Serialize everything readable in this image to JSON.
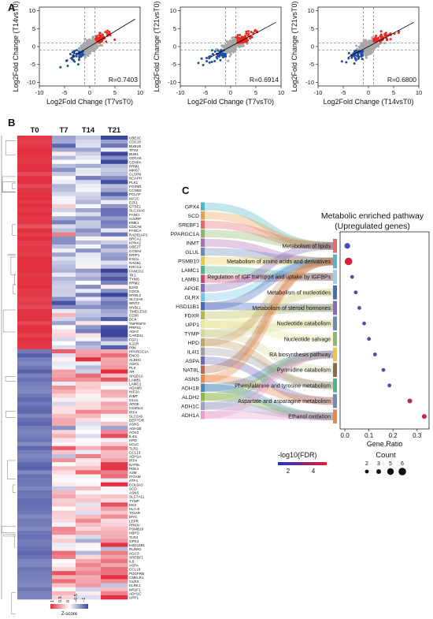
{
  "panels": {
    "a": "A",
    "b": "B",
    "c": "C"
  },
  "chart_data": [
    {
      "type": "scatter",
      "xlabel": "Log2Fold Change (T7vsT0)",
      "ylabel": "Log2Fold Change (T14vsT0)",
      "annotation": "R=0.7403",
      "xticks": [
        "-10",
        "-5",
        "0",
        "5",
        "10"
      ],
      "yticks": [
        "10",
        "5",
        "0",
        "-5",
        "-10"
      ],
      "xlim": [
        -10,
        10
      ],
      "ylim": [
        -11,
        11
      ],
      "threshold": 1,
      "colors": {
        "up": "#e8281e",
        "down": "#1f4ea0",
        "ns": "#a8a8a8"
      }
    },
    {
      "type": "scatter",
      "xlabel": "Log2Fold Change (T7vsT0)",
      "ylabel": "Log2Fold Change (T21vsT0)",
      "annotation": "R=0.6914",
      "xticks": [
        "-10",
        "-5",
        "0",
        "5",
        "10"
      ],
      "yticks": [
        "10",
        "5",
        "0",
        "-5",
        "-10"
      ],
      "xlim": [
        -10,
        10
      ],
      "ylim": [
        -11,
        11
      ],
      "threshold": 1,
      "colors": {
        "up": "#e8281e",
        "down": "#1f4ea0",
        "ns": "#a8a8a8"
      }
    },
    {
      "type": "scatter",
      "xlabel": "Log2Fold Change (T14vsT0)",
      "ylabel": "Log2Fold Change (T21vsT0)",
      "annotation": "R=0.6800",
      "xticks": [
        "-10",
        "-5",
        "0",
        "5",
        "10"
      ],
      "yticks": [
        "10",
        "5",
        "0",
        "-5",
        "-10"
      ],
      "xlim": [
        -10,
        10
      ],
      "ylim": [
        -11,
        11
      ],
      "threshold": 1,
      "colors": {
        "up": "#e8281e",
        "down": "#1f4ea0",
        "ns": "#a8a8a8"
      }
    },
    {
      "type": "heatmap",
      "columns": [
        "T0",
        "T7",
        "T14",
        "T21"
      ],
      "rows": [
        "UBE2C",
        "CDC20",
        "BUB1B",
        "TPX2",
        "BUB1",
        "CDCA5",
        "CENPA",
        "RRM1",
        "MKI67",
        "CLSPN",
        "NCAPH",
        "PLK1",
        "FOXM1",
        "CCNB2",
        "PCLAF",
        "KIF2C",
        "E2F1",
        "GTSE1",
        "SLC16A6",
        "FANCI",
        "HJURP",
        "EME1",
        "CDCA8",
        "FANCA",
        "RAD51AP1",
        "BRCA1",
        "KPNA2",
        "UBE2T",
        "CCNA2",
        "ERIP1",
        "EXO1",
        "RAD51",
        "KRCC2",
        "FANCD2",
        "TK1",
        "TYMS",
        "RRM2",
        "E2H2",
        "CDC6",
        "MYBL2",
        "SLC2A8",
        "WNT2",
        "MYBL1",
        "TIMELESS",
        "CD36",
        "DCK",
        "TNFRSF9",
        "PRPS1",
        "ADH7",
        "CARD11",
        "FGF1",
        "IL21R",
        "PBK",
        "PPARGC1A",
        "ENO3",
        "ALDH2",
        "AOX1",
        "PLK",
        "AR",
        "SH2D1A",
        "LAMB1",
        "LAMC1",
        "ADAM3",
        "HIF3A",
        "INMT",
        "GLUL",
        "APOE",
        "CD40LG",
        "IRF4",
        "SLC2A5",
        "DEPTOR",
        "ASNS",
        "ADH1B",
        "AOX2",
        "IL4I1",
        "HPD",
        "UCLC",
        "TLR2",
        "CCL13",
        "ADH1A",
        "IRF4",
        "NAT8L",
        "PDK4",
        "A2M",
        "ITGAM",
        "ATF4",
        "COL6A3",
        "SCD",
        "ASNS",
        "SLC7A11",
        "TYMP",
        "HK3",
        "HLA-E",
        "TIGAR",
        "MYC",
        "LEPR",
        "PRKN",
        "PSMB10",
        "HBPD",
        "TLR4",
        "GPX4",
        "HSD11B1",
        "RUNX2",
        "AGC3",
        "SREBF1",
        "IL6",
        "ASPA",
        "CCL19",
        "PDGFRB",
        "CMKLR1",
        "GLRX",
        "KLRK1",
        "NR2F1",
        "ADH1C",
        "UPP1"
      ],
      "zscore_min": -1.5,
      "zscore_max": 1.5,
      "legend_label": "Z-score",
      "legend_ticks": [
        "1",
        "0.5",
        "0",
        "−0.5",
        "−1"
      ],
      "colors": {
        "high": "#e23040",
        "mid": "#ffffff",
        "low": "#3b479d"
      }
    },
    {
      "type": "sankey",
      "title": "Metabolic enriched pathway\n(Upregulated genes)",
      "genes": [
        "GPX4",
        "SCD",
        "SREBF1",
        "PPARGC1A",
        "INMT",
        "GLUL",
        "PSMB10",
        "LAMC1",
        "LAMB1",
        "APOE",
        "GLRX",
        "HSD11B1",
        "FDXR",
        "UPP1",
        "TYMP",
        "HPD",
        "IL4I1",
        "ASPA",
        "NAT8L",
        "ASNS",
        "ADH1B",
        "ALDH2",
        "ADH1C",
        "ADH1A"
      ],
      "pathways": [
        {
          "name": "Metabolism of lipids",
          "gene_ratio": 0.01,
          "fdr_log10": 1.4,
          "count": 4
        },
        {
          "name": "Metabolism of amino acids and derivatives",
          "gene_ratio": 0.015,
          "fdr_log10": 5.2,
          "count": 6
        },
        {
          "name": "Regulation of  IGF transport and uptake by IGFBPs",
          "gene_ratio": 0.03,
          "fdr_log10": 1.6,
          "count": 2
        },
        {
          "name": "Metabolism of nucleotides",
          "gene_ratio": 0.045,
          "fdr_log10": 1.6,
          "count": 2
        },
        {
          "name": "Metabolism of steroid hormones",
          "gene_ratio": 0.06,
          "fdr_log10": 1.6,
          "count": 2
        },
        {
          "name": "Nucleotide catabolism",
          "gene_ratio": 0.08,
          "fdr_log10": 1.6,
          "count": 2
        },
        {
          "name": "Nucleotide salvage",
          "gene_ratio": 0.1,
          "fdr_log10": 1.6,
          "count": 2
        },
        {
          "name": "RA biosynthesis pathway",
          "gene_ratio": 0.125,
          "fdr_log10": 1.6,
          "count": 2
        },
        {
          "name": "Pyrimidine catabolism",
          "gene_ratio": 0.16,
          "fdr_log10": 1.6,
          "count": 2
        },
        {
          "name": "Phenylalanine and tyrosine metabolism",
          "gene_ratio": 0.185,
          "fdr_log10": 1.6,
          "count": 2
        },
        {
          "name": "Aspartate and asparagine metabolism",
          "gene_ratio": 0.27,
          "fdr_log10": 4.2,
          "count": 3
        },
        {
          "name": "Ethanol oxidation",
          "gene_ratio": 0.33,
          "fdr_log10": 4.8,
          "count": 3
        }
      ],
      "xlabel": "Gene.Ratio",
      "xticks": [
        "0.0",
        "0.1",
        "0.2",
        "0.3"
      ],
      "xlim": [
        -0.02,
        0.35
      ],
      "color_legend_label": "-log10(FDR)",
      "color_legend_ticks": [
        "2",
        "4"
      ],
      "size_legend_label": "Count",
      "size_legend_values": [
        2,
        3,
        5,
        6
      ]
    }
  ]
}
